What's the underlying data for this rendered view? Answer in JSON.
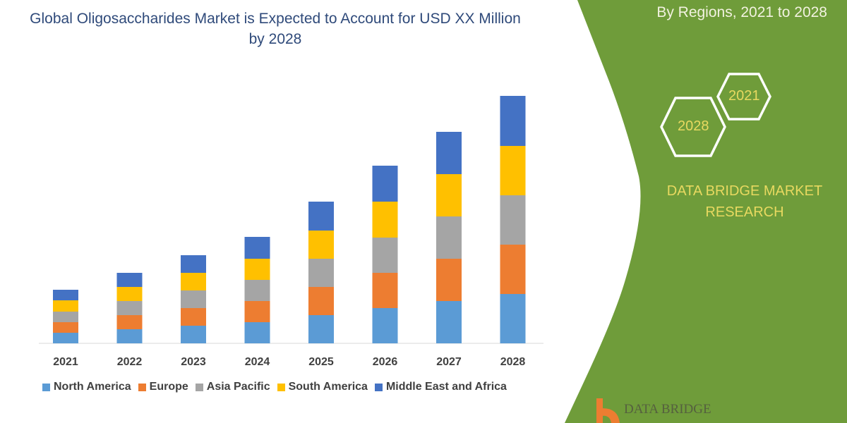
{
  "header": {
    "title": "Global Oligosaccharides Market is Expected to Account for USD XX Million by 2028",
    "subtitle": "By Regions, 2021 to 2028"
  },
  "side_panel": {
    "hex_labels": [
      "2021",
      "2028"
    ],
    "brand": "DATA BRIDGE MARKET RESEARCH",
    "logo_text": "DATA BRIDGE",
    "panel_color": "#6f9c3a",
    "text_color": "#e8d960"
  },
  "chart_data": {
    "type": "bar",
    "stacked": true,
    "title": "Global Oligosaccharides Market is Expected to Account for USD XX Million by 2028",
    "categories": [
      "2021",
      "2022",
      "2023",
      "2024",
      "2025",
      "2026",
      "2027",
      "2028"
    ],
    "series": [
      {
        "name": "North America",
        "color": "#5b9bd5",
        "values": [
          15,
          20,
          25,
          30,
          40,
          50,
          60,
          70
        ]
      },
      {
        "name": "Europe",
        "color": "#ed7d31",
        "values": [
          15,
          20,
          25,
          30,
          40,
          50,
          60,
          70
        ]
      },
      {
        "name": "Asia Pacific",
        "color": "#a5a5a5",
        "values": [
          15,
          20,
          25,
          30,
          40,
          50,
          60,
          70
        ]
      },
      {
        "name": "South America",
        "color": "#ffc000",
        "values": [
          16,
          20,
          25,
          30,
          40,
          51,
          60,
          70
        ]
      },
      {
        "name": "Middle East and Africa",
        "color": "#4472c4",
        "values": [
          15,
          20,
          25,
          31,
          41,
          51,
          60,
          71
        ]
      }
    ],
    "ylim": [
      0,
      360
    ],
    "y_axis_shown": false,
    "grid": false,
    "legend": "bottom"
  }
}
